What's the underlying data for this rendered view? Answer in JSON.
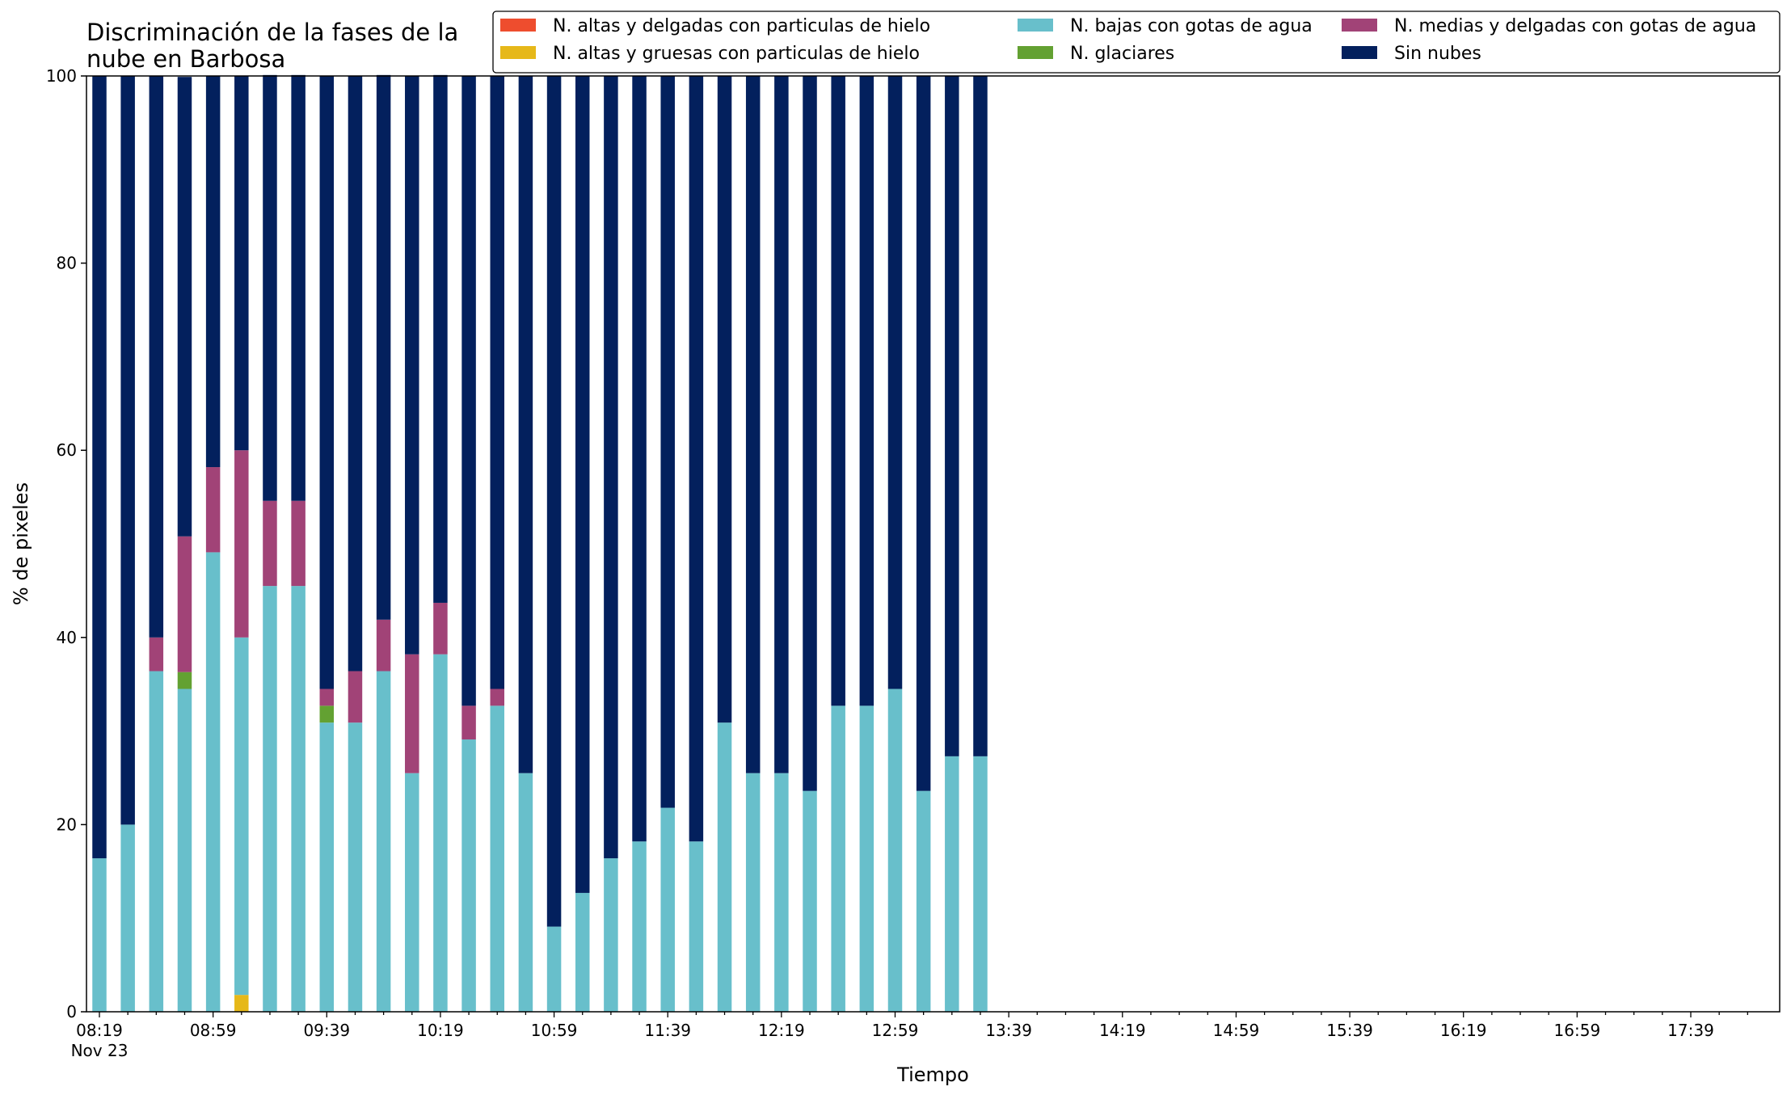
{
  "chart_data": {
    "type": "bar",
    "stacked": true,
    "title": [
      "Discriminación de la fases de la",
      "nube en Barbosa"
    ],
    "xlabel": "Tiempo",
    "ylabel": "% de pixeles",
    "ylim": [
      0,
      100
    ],
    "yticks": [
      0,
      20,
      40,
      60,
      80,
      100
    ],
    "xtick_labels": [
      "08:19",
      "08:59",
      "09:39",
      "10:19",
      "10:59",
      "11:39",
      "12:19",
      "12:59",
      "13:39",
      "14:19",
      "14:59",
      "15:39",
      "16:19",
      "16:59",
      "17:39"
    ],
    "xtick_sublabel": "Nov 23",
    "categories": [
      "08:19",
      "08:29",
      "08:39",
      "08:49",
      "08:59",
      "09:09",
      "09:19",
      "09:29",
      "09:39",
      "09:49",
      "09:59",
      "10:09",
      "10:19",
      "10:29",
      "10:39",
      "10:49",
      "10:59",
      "11:09",
      "11:19",
      "11:29",
      "11:39",
      "11:49",
      "11:59",
      "12:09",
      "12:19",
      "12:29",
      "12:39",
      "12:49",
      "12:59",
      "13:09",
      "13:19",
      "13:29"
    ],
    "grid": false,
    "legend_position": "top-right",
    "legend_columns": 3,
    "series": [
      {
        "name": "N. altas y delgadas con particulas de hielo",
        "color": "#ee4d2e",
        "values": [
          0,
          0,
          0,
          0,
          0,
          0,
          0,
          0,
          0,
          0,
          0,
          0,
          0,
          0,
          0,
          0,
          0,
          0,
          0,
          0,
          0,
          0,
          0,
          0,
          0,
          0,
          0,
          0,
          0,
          0,
          0,
          0
        ]
      },
      {
        "name": "N. altas y gruesas con particulas de hielo",
        "color": "#e6b819",
        "values": [
          0,
          0,
          0,
          0,
          0,
          1.8,
          0,
          0,
          0,
          0,
          0,
          0,
          0,
          0,
          0,
          0,
          0,
          0,
          0,
          0,
          0,
          0,
          0,
          0,
          0,
          0,
          0,
          0,
          0,
          0,
          0,
          0
        ]
      },
      {
        "name": "N. bajas con gotas de agua",
        "color": "#68bfcb",
        "values": [
          16.4,
          20.0,
          36.4,
          34.5,
          49.1,
          38.2,
          45.5,
          45.5,
          30.9,
          30.9,
          36.4,
          25.5,
          38.2,
          29.1,
          32.7,
          25.5,
          9.1,
          12.7,
          16.4,
          18.2,
          21.8,
          18.2,
          30.9,
          25.5,
          25.5,
          23.6,
          32.7,
          32.7,
          34.5,
          23.6,
          27.3,
          27.3
        ]
      },
      {
        "name": "N. glaciares",
        "color": "#63a132",
        "values": [
          0,
          0,
          0,
          1.8,
          0,
          0,
          0,
          0,
          1.8,
          0,
          0,
          0,
          0,
          0,
          0,
          0,
          0,
          0,
          0,
          0,
          0,
          0,
          0,
          0,
          0,
          0,
          0,
          0,
          0,
          0,
          0,
          0
        ]
      },
      {
        "name": "N. medias y delgadas con gotas de agua",
        "color": "#a14377",
        "values": [
          0,
          0,
          3.6,
          14.5,
          9.1,
          20.0,
          9.1,
          9.1,
          1.8,
          5.5,
          5.5,
          12.7,
          5.5,
          3.6,
          1.8,
          0,
          0,
          0,
          0,
          0,
          0,
          0,
          0,
          0,
          0,
          0,
          0,
          0,
          0,
          0,
          0,
          0
        ]
      },
      {
        "name": "Sin nubes",
        "color": "#03205d",
        "values": [
          83.6,
          80.0,
          60.0,
          49.1,
          41.8,
          40.0,
          45.5,
          45.5,
          65.5,
          63.6,
          58.2,
          61.8,
          56.4,
          67.3,
          65.5,
          74.5,
          90.9,
          87.3,
          83.6,
          81.8,
          78.2,
          81.8,
          69.1,
          74.5,
          74.5,
          76.4,
          67.3,
          67.3,
          65.5,
          76.4,
          72.7,
          72.7
        ]
      }
    ]
  }
}
